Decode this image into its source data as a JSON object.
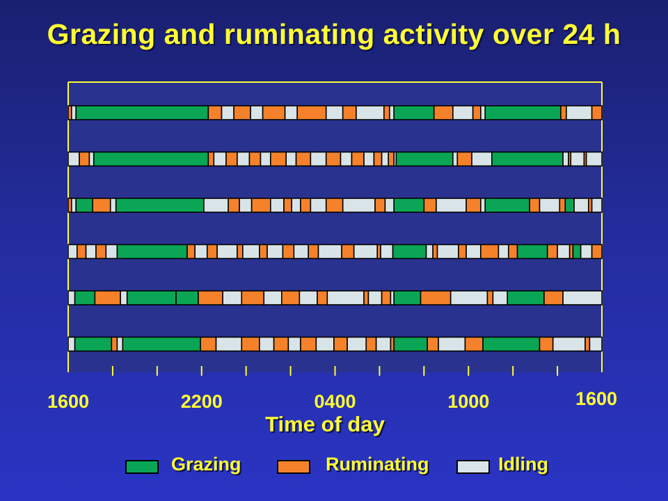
{
  "chart_data": {
    "type": "timeline",
    "title": "Grazing and ruminating activity over 24 h",
    "xlabel": "Time of day",
    "ylabel": "",
    "x_unit": "hours since 1600",
    "x_range": [
      0,
      24
    ],
    "tick_labels": [
      {
        "label": "1600",
        "hour": 0
      },
      {
        "label": "2200",
        "hour": 6
      },
      {
        "label": "0400",
        "hour": 12
      },
      {
        "label": "1000",
        "hour": 18
      },
      {
        "label": "1600",
        "hour": 24
      }
    ],
    "minor_ticks_hours": 1,
    "activities": [
      {
        "key": "G",
        "name": "Grazing",
        "color": "#0aa655"
      },
      {
        "key": "R",
        "name": "Ruminating",
        "color": "#f5822a"
      },
      {
        "key": "I",
        "name": "Idling",
        "color": "#d8e4e8"
      }
    ],
    "rows": [
      {
        "segments": [
          [
            "R",
            0,
            0.15
          ],
          [
            "I",
            0.15,
            0.35
          ],
          [
            "G",
            0.35,
            6.3
          ],
          [
            "R",
            6.3,
            6.9
          ],
          [
            "I",
            6.9,
            7.45
          ],
          [
            "R",
            7.45,
            8.2
          ],
          [
            "I",
            8.2,
            8.75
          ],
          [
            "R",
            8.75,
            9.75
          ],
          [
            "I",
            9.75,
            10.3
          ],
          [
            "R",
            10.3,
            11.6
          ],
          [
            "I",
            11.6,
            12.35
          ],
          [
            "R",
            12.35,
            12.95
          ],
          [
            "I",
            12.95,
            14.2
          ],
          [
            "R",
            14.2,
            14.45
          ],
          [
            "I",
            14.45,
            14.65
          ],
          [
            "G",
            14.65,
            16.45
          ],
          [
            "R",
            16.45,
            17.3
          ],
          [
            "I",
            17.3,
            18.2
          ],
          [
            "R",
            18.2,
            18.55
          ],
          [
            "I",
            18.55,
            18.75
          ],
          [
            "G",
            18.75,
            22.15
          ],
          [
            "R",
            22.15,
            22.4
          ],
          [
            "I",
            22.4,
            23.55
          ],
          [
            "R",
            23.55,
            24
          ]
        ]
      },
      {
        "segments": [
          [
            "I",
            0,
            0.5
          ],
          [
            "R",
            0.5,
            0.95
          ],
          [
            "I",
            0.95,
            1.15
          ],
          [
            "G",
            1.15,
            6.3
          ],
          [
            "R",
            6.3,
            6.55
          ],
          [
            "I",
            6.55,
            7.1
          ],
          [
            "R",
            7.1,
            7.6
          ],
          [
            "I",
            7.6,
            8.15
          ],
          [
            "R",
            8.15,
            8.65
          ],
          [
            "I",
            8.65,
            9.1
          ],
          [
            "R",
            9.1,
            9.8
          ],
          [
            "I",
            9.8,
            10.25
          ],
          [
            "R",
            10.25,
            10.9
          ],
          [
            "I",
            10.9,
            11.6
          ],
          [
            "R",
            11.6,
            12.25
          ],
          [
            "I",
            12.25,
            12.75
          ],
          [
            "R",
            12.75,
            13.3
          ],
          [
            "I",
            13.3,
            13.75
          ],
          [
            "R",
            13.75,
            14.1
          ],
          [
            "I",
            14.1,
            14.4
          ],
          [
            "R",
            14.4,
            14.65
          ],
          [
            "I",
            14.65,
            14.75
          ],
          [
            "G",
            14.75,
            17.3
          ],
          [
            "I",
            17.3,
            17.5
          ],
          [
            "R",
            17.5,
            18.15
          ],
          [
            "I",
            18.15,
            19.05
          ],
          [
            "G",
            19.05,
            22.25
          ],
          [
            "I",
            22.25,
            22.5
          ],
          [
            "R",
            22.5,
            22.6
          ],
          [
            "I",
            22.6,
            23.2
          ],
          [
            "R",
            23.2,
            23.3
          ],
          [
            "I",
            23.3,
            24
          ]
        ]
      },
      {
        "segments": [
          [
            "R",
            0,
            0.15
          ],
          [
            "I",
            0.15,
            0.35
          ],
          [
            "G",
            0.35,
            1.1
          ],
          [
            "R",
            1.1,
            1.9
          ],
          [
            "I",
            1.9,
            2.15
          ],
          [
            "G",
            2.15,
            6.1
          ],
          [
            "I",
            6.1,
            7.2
          ],
          [
            "R",
            7.2,
            7.7
          ],
          [
            "I",
            7.7,
            8.25
          ],
          [
            "R",
            8.25,
            9.1
          ],
          [
            "I",
            9.1,
            9.7
          ],
          [
            "R",
            9.7,
            10.05
          ],
          [
            "I",
            10.05,
            10.45
          ],
          [
            "R",
            10.45,
            10.9
          ],
          [
            "I",
            10.9,
            11.6
          ],
          [
            "R",
            11.6,
            12.35
          ],
          [
            "I",
            12.35,
            13.8
          ],
          [
            "R",
            13.8,
            14.25
          ],
          [
            "I",
            14.25,
            14.65
          ],
          [
            "G",
            14.65,
            16.0
          ],
          [
            "R",
            16.0,
            16.55
          ],
          [
            "I",
            16.55,
            17.9
          ],
          [
            "R",
            17.9,
            18.55
          ],
          [
            "I",
            18.55,
            18.75
          ],
          [
            "G",
            18.75,
            20.75
          ],
          [
            "R",
            20.75,
            21.2
          ],
          [
            "I",
            21.2,
            22.1
          ],
          [
            "R",
            22.1,
            22.35
          ],
          [
            "G",
            22.35,
            22.75
          ],
          [
            "I",
            22.75,
            23.4
          ],
          [
            "R",
            23.4,
            23.55
          ],
          [
            "I",
            23.55,
            24
          ]
        ]
      },
      {
        "segments": [
          [
            "I",
            0,
            0.4
          ],
          [
            "R",
            0.4,
            0.8
          ],
          [
            "I",
            0.8,
            1.25
          ],
          [
            "R",
            1.25,
            1.7
          ],
          [
            "I",
            1.7,
            2.2
          ],
          [
            "G",
            2.2,
            5.35
          ],
          [
            "R",
            5.35,
            5.7
          ],
          [
            "I",
            5.7,
            6.25
          ],
          [
            "R",
            6.25,
            6.7
          ],
          [
            "I",
            6.7,
            7.6
          ],
          [
            "R",
            7.6,
            7.85
          ],
          [
            "I",
            7.85,
            8.6
          ],
          [
            "R",
            8.6,
            8.95
          ],
          [
            "I",
            8.95,
            9.65
          ],
          [
            "R",
            9.65,
            10.15
          ],
          [
            "I",
            10.15,
            10.8
          ],
          [
            "R",
            10.8,
            11.25
          ],
          [
            "I",
            11.25,
            12.3
          ],
          [
            "R",
            12.3,
            12.85
          ],
          [
            "I",
            12.85,
            13.9
          ],
          [
            "R",
            13.9,
            14.05
          ],
          [
            "I",
            14.05,
            14.6
          ],
          [
            "G",
            14.6,
            16.1
          ],
          [
            "I",
            16.1,
            16.4
          ],
          [
            "R",
            16.4,
            16.6
          ],
          [
            "I",
            16.6,
            17.55
          ],
          [
            "R",
            17.55,
            17.9
          ],
          [
            "I",
            17.9,
            18.55
          ],
          [
            "R",
            18.55,
            19.35
          ],
          [
            "I",
            19.35,
            19.8
          ],
          [
            "R",
            19.8,
            20.2
          ],
          [
            "G",
            20.2,
            21.55
          ],
          [
            "R",
            21.55,
            22.0
          ],
          [
            "I",
            22.0,
            22.55
          ],
          [
            "R",
            22.55,
            22.7
          ],
          [
            "G",
            22.7,
            23.05
          ],
          [
            "I",
            23.05,
            23.55
          ],
          [
            "R",
            23.55,
            24
          ]
        ]
      },
      {
        "segments": [
          [
            "I",
            0,
            0.3
          ],
          [
            "G",
            0.3,
            1.2
          ],
          [
            "R",
            1.2,
            2.35
          ],
          [
            "I",
            2.35,
            2.65
          ],
          [
            "G",
            2.65,
            4.85
          ],
          [
            "G",
            4.85,
            5.85
          ],
          [
            "R",
            5.85,
            6.95
          ],
          [
            "I",
            6.95,
            7.8
          ],
          [
            "R",
            7.8,
            8.8
          ],
          [
            "I",
            8.8,
            9.6
          ],
          [
            "R",
            9.6,
            10.4
          ],
          [
            "I",
            10.4,
            11.2
          ],
          [
            "R",
            11.2,
            11.65
          ],
          [
            "I",
            11.65,
            13.3
          ],
          [
            "R",
            13.3,
            13.5
          ],
          [
            "I",
            13.5,
            14.1
          ],
          [
            "R",
            14.1,
            14.5
          ],
          [
            "I",
            14.5,
            14.65
          ],
          [
            "G",
            14.65,
            15.85
          ],
          [
            "R",
            15.85,
            17.2
          ],
          [
            "I",
            17.2,
            18.85
          ],
          [
            "R",
            18.85,
            19.1
          ],
          [
            "I",
            19.1,
            19.75
          ],
          [
            "G",
            19.75,
            21.4
          ],
          [
            "R",
            21.4,
            22.25
          ],
          [
            "I",
            22.25,
            24
          ]
        ]
      },
      {
        "segments": [
          [
            "I",
            0,
            0.3
          ],
          [
            "G",
            0.3,
            1.95
          ],
          [
            "R",
            1.95,
            2.2
          ],
          [
            "I",
            2.2,
            2.45
          ],
          [
            "G",
            2.45,
            5.95
          ],
          [
            "R",
            5.95,
            6.65
          ],
          [
            "I",
            6.65,
            7.8
          ],
          [
            "R",
            7.8,
            8.6
          ],
          [
            "I",
            8.6,
            9.25
          ],
          [
            "R",
            9.25,
            9.9
          ],
          [
            "I",
            9.9,
            10.45
          ],
          [
            "R",
            10.45,
            11.15
          ],
          [
            "I",
            11.15,
            11.95
          ],
          [
            "R",
            11.95,
            12.55
          ],
          [
            "I",
            12.55,
            13.4
          ],
          [
            "R",
            13.4,
            13.85
          ],
          [
            "I",
            13.85,
            14.5
          ],
          [
            "R",
            14.5,
            14.65
          ],
          [
            "G",
            14.65,
            16.15
          ],
          [
            "R",
            16.15,
            16.65
          ],
          [
            "I",
            16.65,
            17.85
          ],
          [
            "R",
            17.85,
            18.65
          ],
          [
            "G",
            18.65,
            21.2
          ],
          [
            "R",
            21.2,
            21.8
          ],
          [
            "I",
            21.8,
            23.25
          ],
          [
            "R",
            23.25,
            23.45
          ],
          [
            "I",
            23.45,
            24
          ]
        ]
      }
    ],
    "grid": false,
    "legend_placement": "bottom"
  }
}
